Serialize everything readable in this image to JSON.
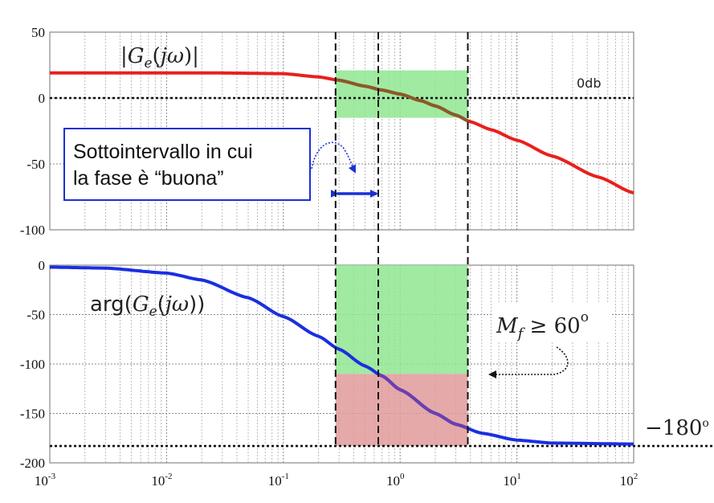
{
  "chart_data": [
    {
      "type": "line",
      "panel": "magnitude",
      "label": "|G_e(jω)|",
      "xscale": "log",
      "xlim": [
        0.001,
        100
      ],
      "ylim": [
        -100,
        50
      ],
      "yticks": [
        "50",
        "0",
        "-50",
        "-100"
      ],
      "grid": true,
      "series": [
        {
          "color": "#e8201e",
          "x": [
            0.001,
            0.01,
            0.03,
            0.1,
            0.2,
            0.3,
            0.5,
            0.7,
            1,
            1.5,
            2,
            3,
            4,
            6,
            10,
            20,
            50,
            100
          ],
          "y": [
            19,
            19,
            19,
            18.5,
            16,
            13.5,
            9,
            6,
            3,
            -2,
            -6,
            -13,
            -18,
            -24,
            -32,
            -44,
            -60,
            -72
          ]
        }
      ],
      "reference_line": {
        "y": 0,
        "label": "0db"
      },
      "highlight_band": {
        "x": [
          0.28,
          3.8
        ],
        "y": [
          -15,
          21
        ],
        "color": "#90e690"
      },
      "annotation": {
        "lines": [
          "Sottointervallo in cui",
          "la fase è “buona”"
        ]
      },
      "double_arrow_x": [
        0.28,
        0.65
      ]
    },
    {
      "type": "line",
      "panel": "phase",
      "label": "arg(G_e(jω))",
      "xscale": "log",
      "xlim": [
        0.001,
        100
      ],
      "ylim": [
        -200,
        0
      ],
      "yticks": [
        "0",
        "-50",
        "-100",
        "-150",
        "-200"
      ],
      "xticks": [
        {
          "base": "10",
          "exp": "-3"
        },
        {
          "base": "10",
          "exp": "-2"
        },
        {
          "base": "10",
          "exp": "-1"
        },
        {
          "base": "10",
          "exp": "0"
        },
        {
          "base": "10",
          "exp": "1"
        },
        {
          "base": "10",
          "exp": "2"
        }
      ],
      "grid": true,
      "series": [
        {
          "color": "#1a2fe0",
          "x": [
            0.001,
            0.003,
            0.01,
            0.02,
            0.05,
            0.1,
            0.2,
            0.3,
            0.5,
            0.7,
            1,
            2,
            3,
            5,
            10,
            20,
            100
          ],
          "y": [
            -2,
            -3,
            -8,
            -15,
            -33,
            -52,
            -72,
            -85,
            -102,
            -112,
            -126,
            -150,
            -161,
            -170,
            -177,
            -180,
            -181
          ]
        }
      ],
      "reference_line": {
        "y": -183,
        "label": "−180",
        "label_sup": "o"
      },
      "green_band": {
        "x": [
          0.28,
          3.8
        ],
        "y": [
          -110,
          0
        ],
        "color": "#90e690"
      },
      "red_band": {
        "x": [
          0.28,
          3.8
        ],
        "y": [
          -183,
          -110
        ],
        "color": "#e09a9a"
      },
      "margin_label": {
        "main": "M",
        "sub": "f",
        "rest": " ≥ 60",
        "sup": "o"
      }
    }
  ],
  "vertical_dashed_x": [
    0.28,
    0.65,
    3.8
  ]
}
